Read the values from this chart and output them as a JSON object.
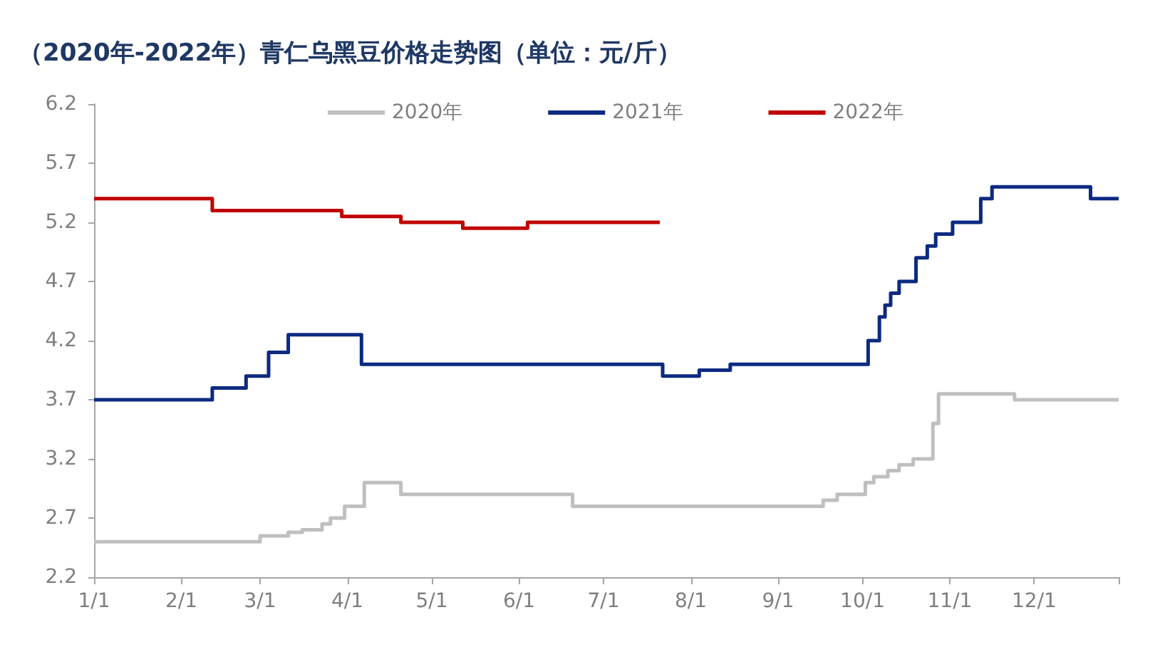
{
  "chart_data": {
    "type": "step",
    "title": "（2020年-2022年）青仁乌黑豆价格走势图（单位：元/斤）",
    "series": [
      {
        "name": "2020年",
        "color": "#bfbfbf",
        "x": [
          "--01-01",
          "--03-01",
          "--03-11",
          "--03-16",
          "--03-23",
          "--03-26",
          "--03-31",
          "--04-07",
          "--04-20",
          "--06-20",
          "--09-17",
          "--09-22",
          "--10-02",
          "--10-05",
          "--10-10",
          "--10-14",
          "--10-19",
          "--10-26",
          "--10-28",
          "--11-24",
          "--12-31"
        ],
        "values": [
          2.5,
          2.55,
          2.58,
          2.6,
          2.65,
          2.7,
          2.8,
          3.0,
          2.9,
          2.8,
          2.85,
          2.9,
          3.0,
          3.05,
          3.1,
          3.15,
          3.2,
          3.5,
          3.75,
          3.7,
          3.7
        ]
      },
      {
        "name": "2021年",
        "color": "#0d2a80",
        "x": [
          "--01-01",
          "--02-12",
          "--02-24",
          "--03-04",
          "--03-11",
          "--04-06",
          "--07-22",
          "--08-04",
          "--08-15",
          "--10-03",
          "--10-07",
          "--10-09",
          "--10-11",
          "--10-14",
          "--10-20",
          "--10-24",
          "--10-27",
          "--11-02",
          "--11-12",
          "--11-16",
          "--12-21",
          "--12-31"
        ],
        "values": [
          3.7,
          3.8,
          3.9,
          4.1,
          4.25,
          4.0,
          3.9,
          3.95,
          4.0,
          4.2,
          4.4,
          4.5,
          4.6,
          4.7,
          4.9,
          5.0,
          5.1,
          5.2,
          5.4,
          5.5,
          5.4,
          5.4
        ]
      },
      {
        "name": "2022年",
        "color": "#c00000",
        "x": [
          "--01-01",
          "--02-12",
          "--03-30",
          "--04-20",
          "--05-12",
          "--06-04",
          "--07-21"
        ],
        "values": [
          5.4,
          5.3,
          5.25,
          5.2,
          5.15,
          5.2,
          5.2
        ]
      }
    ],
    "xlim": [
      "--01-01",
      "--12-31"
    ],
    "xticks": [
      {
        "value": "--01-01",
        "label": "1/1"
      },
      {
        "value": "--02-01",
        "label": "2/1"
      },
      {
        "value": "--03-01",
        "label": "3/1"
      },
      {
        "value": "--04-01",
        "label": "4/1"
      },
      {
        "value": "--05-01",
        "label": "5/1"
      },
      {
        "value": "--06-01",
        "label": "6/1"
      },
      {
        "value": "--07-01",
        "label": "7/1"
      },
      {
        "value": "--08-01",
        "label": "8/1"
      },
      {
        "value": "--09-01",
        "label": "9/1"
      },
      {
        "value": "--10-01",
        "label": "10/1"
      },
      {
        "value": "--11-01",
        "label": "11/1"
      },
      {
        "value": "--12-01",
        "label": "12/1"
      },
      {
        "value": "--12-31",
        "label": null
      }
    ],
    "ylim": [
      2.2,
      6.2
    ],
    "yticks": [
      2.2,
      2.7,
      3.2,
      3.7,
      4.2,
      4.7,
      5.2,
      5.7,
      6.2
    ],
    "legend": "top",
    "grid": false
  }
}
